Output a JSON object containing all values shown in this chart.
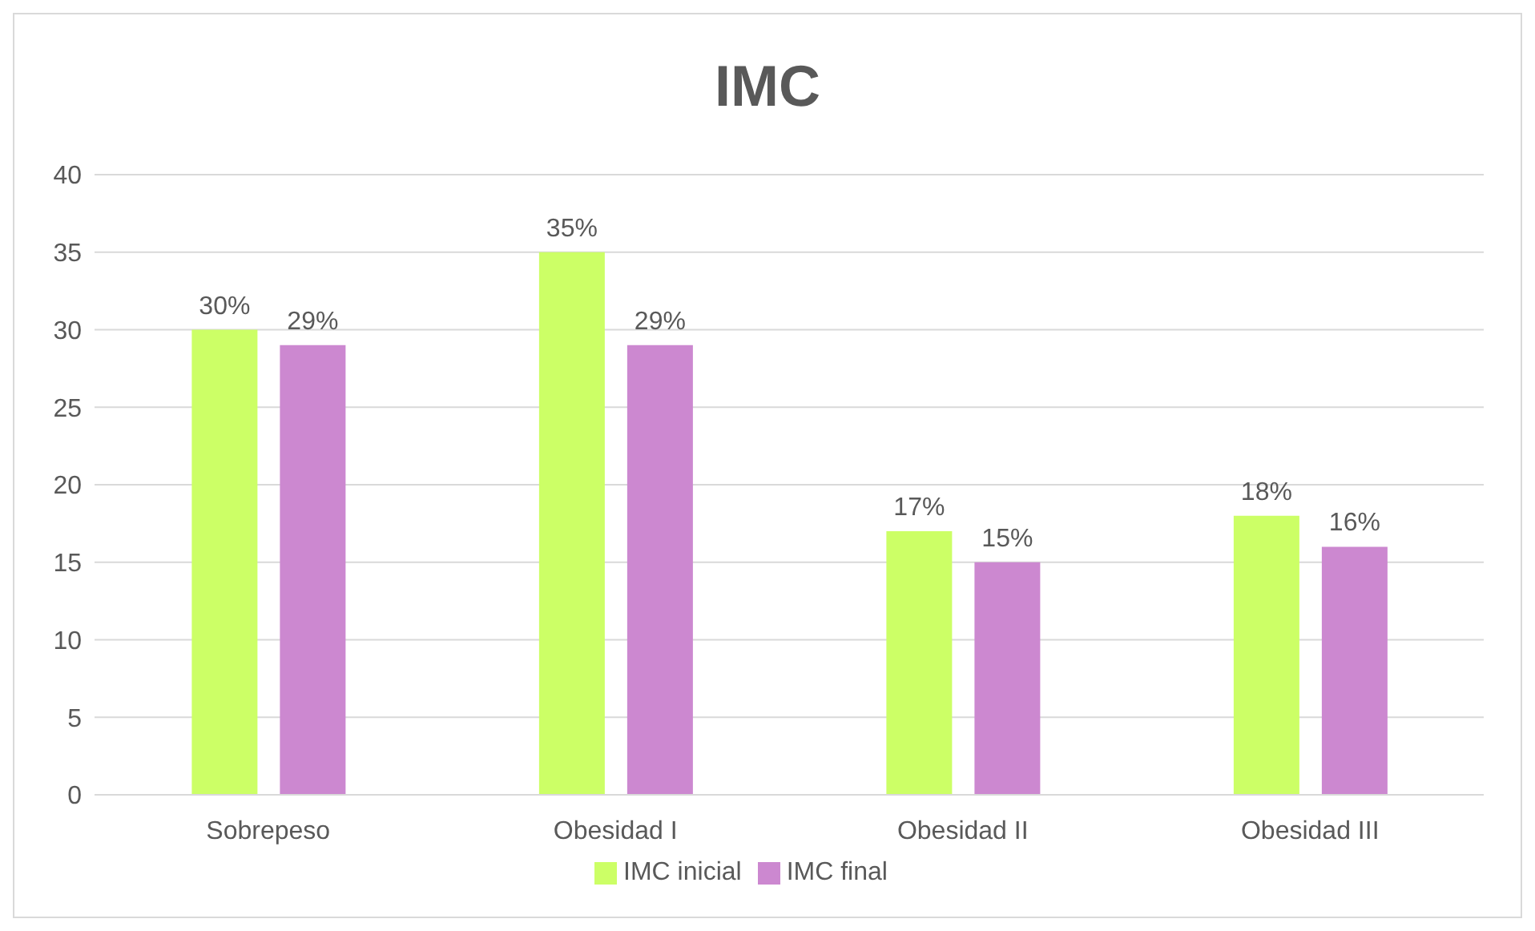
{
  "chart_data": {
    "type": "bar",
    "title": "IMC",
    "categories": [
      "Sobrepeso",
      "Obesidad I",
      "Obesidad II",
      "Obesidad III"
    ],
    "series": [
      {
        "name": "IMC inicial",
        "color": "#ccff66",
        "values": [
          30,
          35,
          17,
          18
        ],
        "value_labels": [
          "30%",
          "35%",
          "17%",
          "18%"
        ]
      },
      {
        "name": "IMC final",
        "color": "#cc88d0",
        "values": [
          29,
          29,
          15,
          16
        ],
        "value_labels": [
          "29%",
          "29%",
          "15%",
          "16%"
        ]
      }
    ],
    "ylim": [
      0,
      40
    ],
    "yticks": [
      0,
      5,
      10,
      15,
      20,
      25,
      30,
      35,
      40
    ],
    "grid": "y",
    "legend": "bottom"
  }
}
